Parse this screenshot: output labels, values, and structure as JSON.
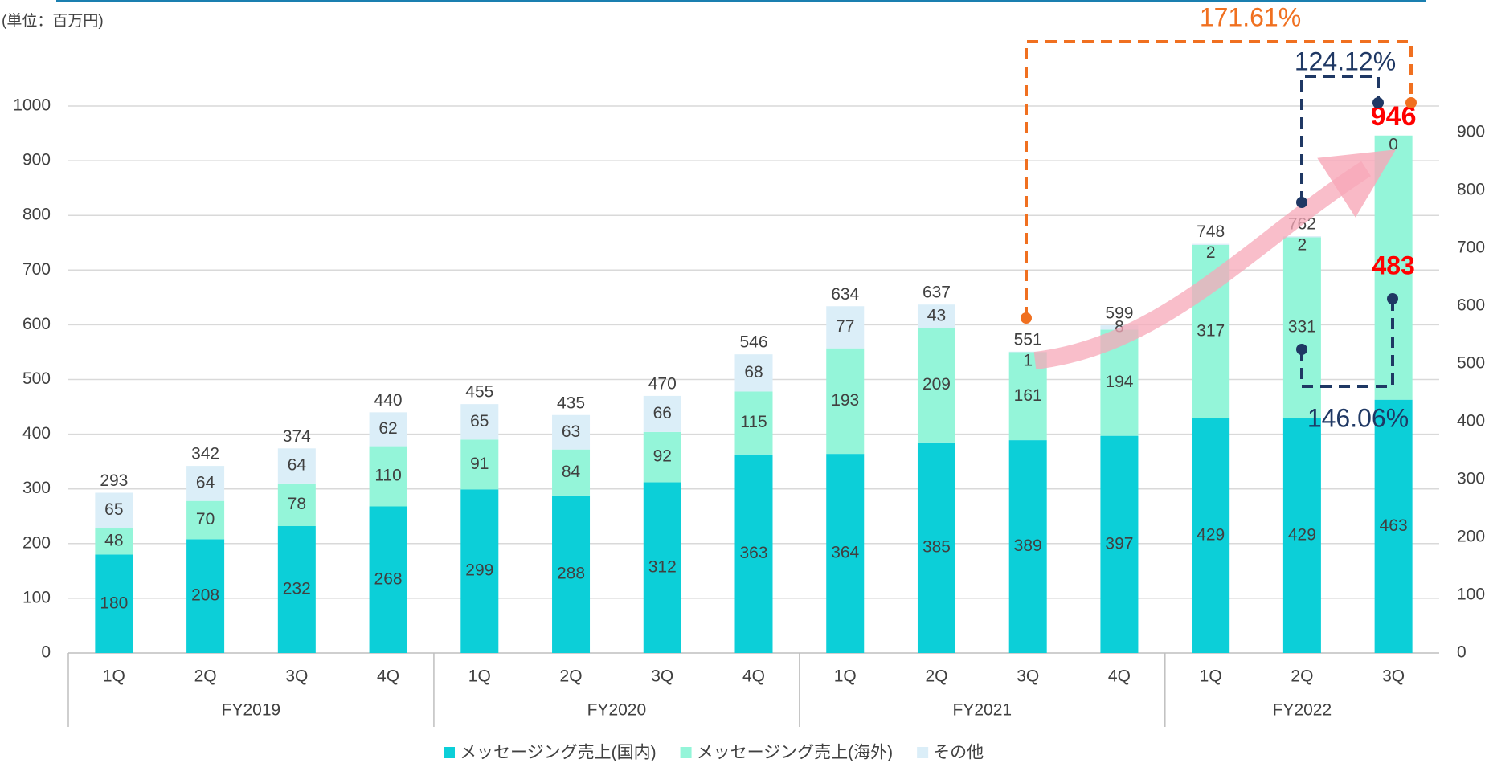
{
  "chart_data": {
    "type": "stacked_bar",
    "unit_note": "(単位：百万円)",
    "categories": [
      "1Q",
      "2Q",
      "3Q",
      "4Q",
      "1Q",
      "2Q",
      "3Q",
      "4Q",
      "1Q",
      "2Q",
      "3Q",
      "4Q",
      "1Q",
      "2Q",
      "3Q"
    ],
    "category_groups": [
      "FY2019",
      "FY2019",
      "FY2019",
      "FY2019",
      "FY2020",
      "FY2020",
      "FY2020",
      "FY2020",
      "FY2021",
      "FY2021",
      "FY2021",
      "FY2021",
      "FY2022",
      "FY2022",
      "FY2022"
    ],
    "series": [
      {
        "name": "メッセージング売上(国内)",
        "color": "#0ccfd8",
        "values": [
          180,
          208,
          232,
          268,
          299,
          288,
          312,
          363,
          364,
          385,
          389,
          397,
          429,
          429,
          463
        ]
      },
      {
        "name": "メッセージング売上(海外)",
        "color": "#94f5d9",
        "values": [
          48,
          70,
          78,
          110,
          91,
          84,
          92,
          115,
          193,
          209,
          161,
          194,
          317,
          331,
          483
        ]
      },
      {
        "name": "その他",
        "color": "#dbeef8",
        "values": [
          65,
          64,
          64,
          62,
          65,
          63,
          66,
          68,
          77,
          43,
          1,
          8,
          2,
          2,
          0
        ]
      }
    ],
    "totals": [
      293,
      342,
      374,
      440,
      455,
      435,
      470,
      546,
      634,
      637,
      551,
      599,
      748,
      762,
      946
    ],
    "ylim": [
      0,
      1000
    ],
    "yticks": [
      0,
      100,
      200,
      300,
      400,
      500,
      600,
      700,
      800,
      900,
      1000
    ],
    "y2lim": [
      0,
      946
    ],
    "y2ticks": [
      0,
      100,
      200,
      300,
      400,
      500,
      600,
      700,
      800,
      900
    ],
    "grid": true,
    "legend": "bottom",
    "annotations": [
      "171.61%",
      "124.12%",
      "146.06%"
    ]
  }
}
